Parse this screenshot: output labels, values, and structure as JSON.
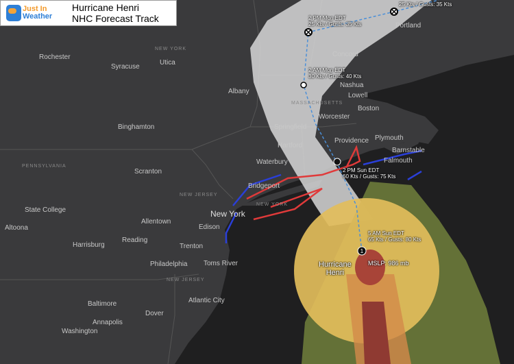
{
  "header": {
    "logo_line1": "Just In",
    "logo_line2": "Weather",
    "title_line1": "Hurricane Henri",
    "title_line2": "NHC Forecast Track"
  },
  "colors": {
    "land": "#3a3a3c",
    "ocean": "#1e1e1f",
    "cone": "#d6d6d6",
    "tropical_storm_wind": "#e6c25a",
    "hurricane_wind": "#b94a3d",
    "warning_red": "#e03a3a",
    "watch_blue": "#2a3fd8",
    "track": "#4a8fd8"
  },
  "cities": [
    "Rochester",
    "Syracuse",
    "Utica",
    "Albany",
    "Binghamton",
    "Scranton",
    "State College",
    "Altoona",
    "Harrisburg",
    "Allentown",
    "Reading",
    "Philadelphia",
    "Trenton",
    "Edison",
    "Toms River",
    "Atlantic City",
    "Baltimore",
    "Annapolis",
    "Dover",
    "Washington",
    "New York",
    "Bridgeport",
    "Waterbury",
    "Hartford",
    "Springfield",
    "Worcester",
    "Boston",
    "Lowell",
    "Nashua",
    "Concord",
    "Portland",
    "Providence",
    "Plymouth",
    "Barnstable",
    "Falmouth"
  ],
  "states": [
    "NEW YORK",
    "PENNSYLVANIA",
    "NEW JERSEY",
    "NEW JERSEY",
    "NEW YORK",
    "MASSACHUSETTS"
  ],
  "forecast_points": [
    {
      "time": "5 AM Sun EDT",
      "wind": "65 Kts / Gusts: 80 Kts",
      "icon": "hurricane-icon",
      "category": "1"
    },
    {
      "time": "2 PM Sun EDT",
      "wind": "60 Kts / Gusts: 75 Kts",
      "icon": "tropical-storm-icon"
    },
    {
      "time": "2 AM Mon EDT",
      "wind": "30 Kts / Gusts: 40 Kts",
      "icon": "depression-icon"
    },
    {
      "time": "2 PM Mon EDT",
      "wind": "25 Kts / Gusts: 35 Kts",
      "icon": "post-tropical-icon"
    },
    {
      "time": "",
      "wind": "25 Kts / Gusts: 35 Kts",
      "icon": "post-tropical-icon"
    }
  ],
  "storm": {
    "name_line1": "Hurricane",
    "name_line2": "Henri",
    "mslp": "MSLP: 986 mb"
  }
}
